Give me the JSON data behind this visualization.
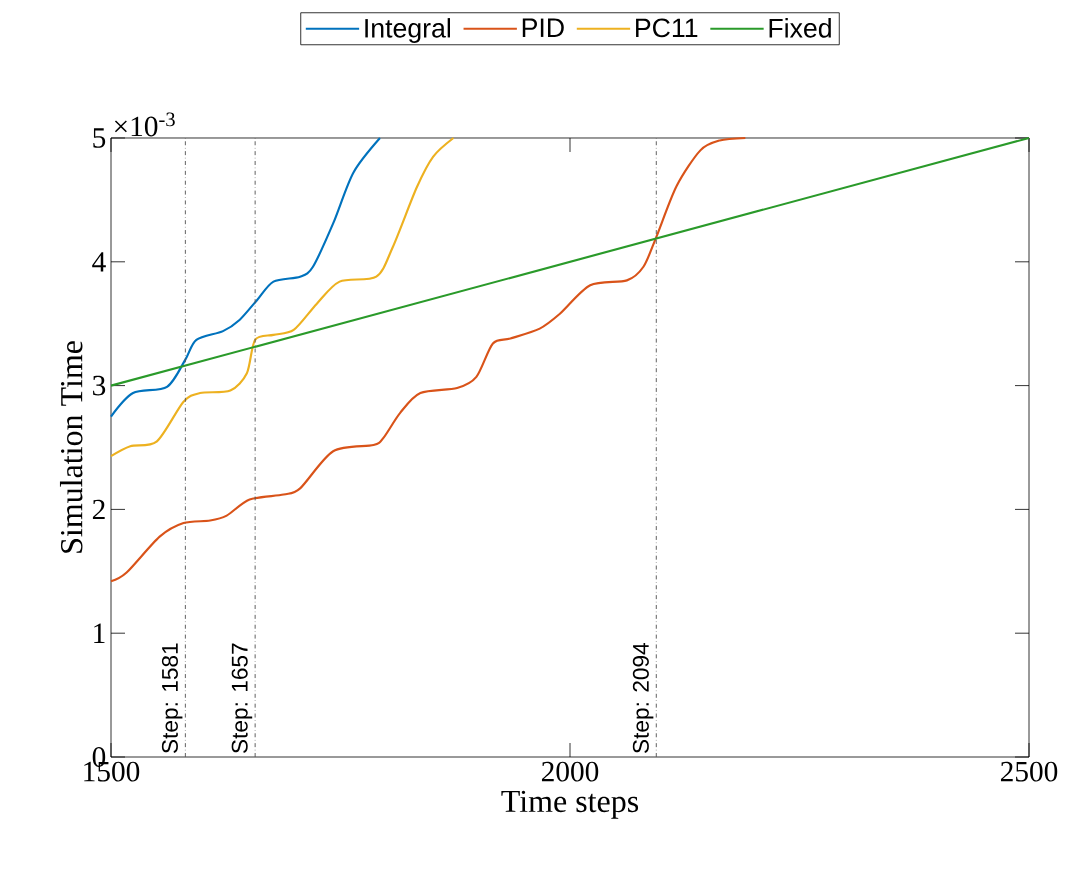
{
  "chart_data": {
    "type": "line",
    "xlabel": "Time steps",
    "ylabel": "Simulation Time",
    "annotations": [
      "×10$^{-3}$"
    ],
    "xlim": [
      1500,
      2500
    ],
    "ylim": [
      0,
      5
    ],
    "xticks": [
      1500,
      2000,
      2500
    ],
    "yticks": [
      0,
      1,
      2,
      3,
      4,
      5
    ],
    "legend": "top",
    "grid": false,
    "line_style": "solid",
    "marker": "none",
    "series": [
      {
        "name": "Integral",
        "color": "#0072bd",
        "x": [
          1500,
          1524,
          1561,
          1581,
          1593,
          1622,
          1640,
          1659,
          1677,
          1706,
          1720,
          1742,
          1764,
          1793
        ],
        "values": [
          2.75,
          2.94,
          2.99,
          3.21,
          3.37,
          3.44,
          3.53,
          3.69,
          3.84,
          3.88,
          3.96,
          4.31,
          4.72,
          5.0
        ]
      },
      {
        "name": "PID",
        "color": "#d95319",
        "x": [
          1500,
          1517,
          1553,
          1579,
          1608,
          1626,
          1651,
          1688,
          1706,
          1742,
          1786,
          1797,
          1815,
          1837,
          1877,
          1898,
          1916,
          1935,
          1967,
          1989,
          2022,
          2062,
          2080,
          2094,
          2116,
          2142,
          2163,
          2191
        ],
        "values": [
          1.42,
          1.49,
          1.78,
          1.89,
          1.91,
          1.95,
          2.08,
          2.12,
          2.17,
          2.47,
          2.52,
          2.58,
          2.78,
          2.94,
          2.98,
          3.07,
          3.34,
          3.38,
          3.46,
          3.58,
          3.81,
          3.85,
          3.96,
          4.2,
          4.61,
          4.9,
          4.98,
          5.0
        ]
      },
      {
        "name": "PC11",
        "color": "#edb120",
        "x": [
          1500,
          1521,
          1550,
          1579,
          1597,
          1630,
          1648,
          1657,
          1677,
          1699,
          1724,
          1749,
          1789,
          1807,
          1833,
          1851,
          1873
        ],
        "values": [
          2.43,
          2.51,
          2.55,
          2.87,
          2.94,
          2.96,
          3.1,
          3.37,
          3.41,
          3.45,
          3.66,
          3.84,
          3.88,
          4.12,
          4.6,
          4.85,
          5.0
        ]
      },
      {
        "name": "Fixed",
        "color": "#2a9a2a",
        "x": [
          1500,
          2500
        ],
        "values": [
          3.0,
          5.0
        ]
      }
    ],
    "ref_lines": [
      {
        "axis": "x",
        "value": 1581,
        "label": "Step: 1581",
        "color": "#555555",
        "line_style": "dashdot"
      },
      {
        "axis": "x",
        "value": 1657,
        "label": "Step: 1657",
        "color": "#555555",
        "line_style": "dashdot"
      },
      {
        "axis": "x",
        "value": 2094,
        "label": "Step: 2094",
        "color": "#555555",
        "line_style": "dashdot"
      }
    ]
  }
}
